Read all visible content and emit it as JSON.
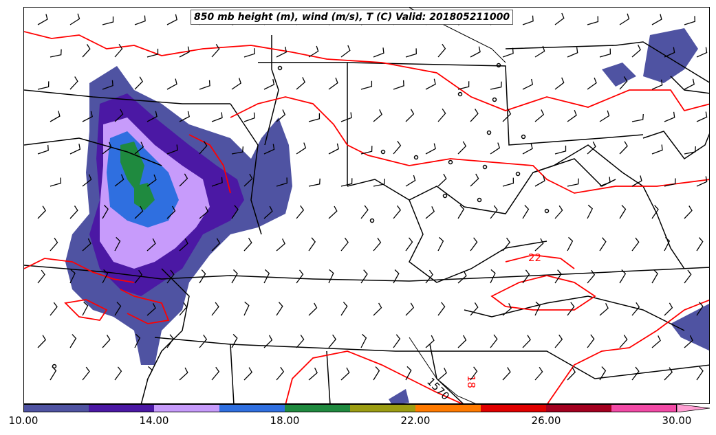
{
  "title": "850 mb height (m), wind (m/s), T (C) Valid: 201805211000",
  "contour_labels": {
    "temp_22": "22",
    "temp_18": "18",
    "height_1570": "1570"
  },
  "colors": {
    "temperature_contour": "#ff0000",
    "height_contour": "#000000",
    "borders": "#000000"
  },
  "colorbar": {
    "units_range": [
      10,
      30
    ],
    "extend": "max",
    "bins": [
      {
        "from": 10,
        "to": 12,
        "color": "#4f53a2"
      },
      {
        "from": 12,
        "to": 14,
        "color": "#4b18a4"
      },
      {
        "from": 14,
        "to": 16,
        "color": "#c79bfb"
      },
      {
        "from": 16,
        "to": 18,
        "color": "#2f6fe0"
      },
      {
        "from": 18,
        "to": 20,
        "color": "#1f8a3f"
      },
      {
        "from": 20,
        "to": 22,
        "color": "#9c9d12"
      },
      {
        "from": 22,
        "to": 24,
        "color": "#ff7a00"
      },
      {
        "from": 24,
        "to": 26,
        "color": "#e00000"
      },
      {
        "from": 26,
        "to": 28,
        "color": "#a3001f"
      },
      {
        "from": 28,
        "to": 30,
        "color": "#f24aa6"
      },
      {
        "from": 30,
        "to": null,
        "color": "#ff9fd3"
      }
    ],
    "ticks": [
      {
        "value": 10,
        "label": "10.00"
      },
      {
        "value": 14,
        "label": "14.00"
      },
      {
        "value": 18,
        "label": "18.00"
      },
      {
        "value": 22,
        "label": "22.00"
      },
      {
        "value": 26,
        "label": "26.00"
      },
      {
        "value": 30,
        "label": "30.00"
      }
    ]
  }
}
